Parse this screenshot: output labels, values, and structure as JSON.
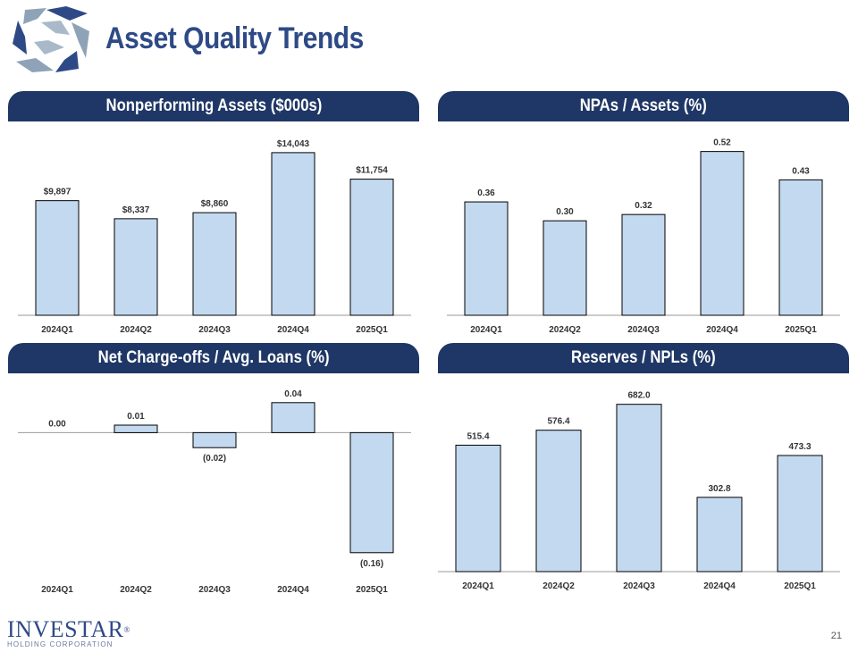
{
  "header": {
    "title": "Asset Quality Trends"
  },
  "brand": {
    "name": "INVESTAR",
    "registered": "®",
    "subtitle": "HOLDING CORPORATION"
  },
  "footer": {
    "page_number": "21"
  },
  "colors": {
    "navy": "#1f3766",
    "title": "#2e4a86",
    "bar_fill": "#c3d9ef"
  },
  "chart_data": [
    {
      "type": "bar",
      "title": "Nonperforming Assets ($000s)",
      "categories": [
        "2024Q1",
        "2024Q2",
        "2024Q3",
        "2024Q4",
        "2025Q1"
      ],
      "values": [
        9897,
        8337,
        8860,
        14043,
        11754
      ],
      "labels": [
        "$9,897",
        "$8,337",
        "$8,860",
        "$14,043",
        "$11,754"
      ],
      "ylim": [
        0,
        15500
      ],
      "xlabel": "",
      "ylabel": "",
      "grid": false
    },
    {
      "type": "bar",
      "title": "NPAs / Assets (%)",
      "categories": [
        "2024Q1",
        "2024Q2",
        "2024Q3",
        "2024Q4",
        "2025Q1"
      ],
      "values": [
        0.36,
        0.3,
        0.32,
        0.52,
        0.43
      ],
      "labels": [
        "0.36",
        "0.30",
        "0.32",
        "0.52",
        "0.43"
      ],
      "ylim": [
        0,
        0.57
      ],
      "xlabel": "",
      "ylabel": "",
      "grid": false
    },
    {
      "type": "bar",
      "title": "Net Charge-offs / Avg. Loans (%)",
      "categories": [
        "2024Q1",
        "2024Q2",
        "2024Q3",
        "2024Q4",
        "2025Q1"
      ],
      "values": [
        0.0,
        0.01,
        -0.02,
        0.04,
        -0.16
      ],
      "labels": [
        "0.00",
        "0.01",
        "(0.02)",
        "0.04",
        "(0.16)"
      ],
      "ylim": [
        -0.19,
        0.06
      ],
      "xlabel": "",
      "ylabel": "",
      "grid": false
    },
    {
      "type": "bar",
      "title": "Reserves / NPLs (%)",
      "categories": [
        "2024Q1",
        "2024Q2",
        "2024Q3",
        "2024Q4",
        "2025Q1"
      ],
      "values": [
        515.4,
        576.4,
        682.0,
        302.8,
        473.3
      ],
      "labels": [
        "515.4",
        "576.4",
        "682.0",
        "302.8",
        "473.3"
      ],
      "ylim": [
        0,
        750
      ],
      "xlabel": "",
      "ylabel": "",
      "grid": false
    }
  ]
}
